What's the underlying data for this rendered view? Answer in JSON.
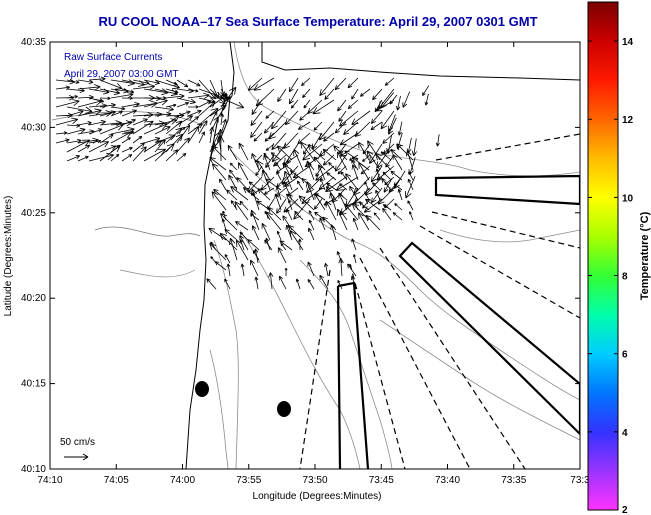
{
  "chart_data": {
    "type": "vector-field",
    "title": "RU COOL  NOAA–17  Sea Surface Temperature:  April 29, 2007 0301 GMT",
    "xlabel": "Longitude (Degrees:Minutes)",
    "ylabel": "Latitude (Degrees:Minutes)",
    "xlim": [
      -74.1667,
      -73.5
    ],
    "ylim": [
      40.1667,
      40.5833
    ],
    "x_ticks": [
      "74:10",
      "74:05",
      "74:00",
      "73:55",
      "73:50",
      "73:45",
      "73:40",
      "73:35",
      "73:3"
    ],
    "y_ticks": [
      "40:35",
      "40:30",
      "40:25",
      "40:20",
      "40:15",
      "40:10"
    ],
    "overlay_labels": [
      "Raw Surface Currents",
      "April 29, 2007 03:00 GMT"
    ],
    "scale_label": "50 cm/s",
    "colorbar": {
      "label": "Temperature (°C)",
      "range": [
        2,
        15
      ],
      "ticks": [
        "14",
        "12",
        "10",
        "8",
        "6",
        "4",
        "2"
      ],
      "colors": [
        "#ff33ff",
        "#9a33ff",
        "#3333ff",
        "#0077ff",
        "#00ccff",
        "#00ffaa",
        "#33ff33",
        "#aaff00",
        "#ffff00",
        "#ffbb00",
        "#ff6600",
        "#ff1a00",
        "#cc0000",
        "#7a0000"
      ]
    },
    "grid": false,
    "legend": "none"
  }
}
